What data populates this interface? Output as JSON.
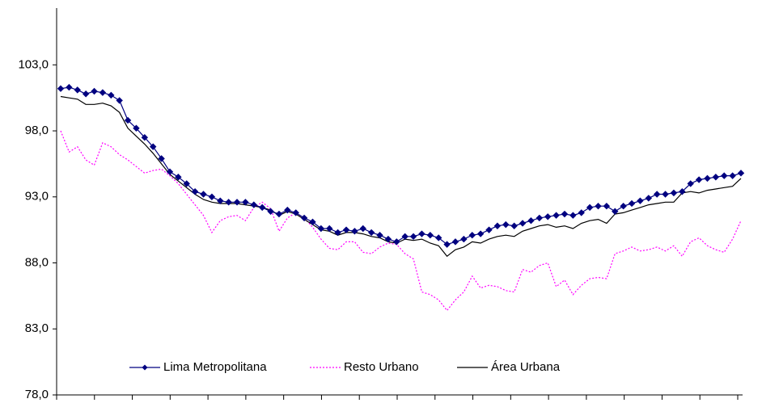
{
  "chart_data": {
    "type": "line",
    "categories": [
      null,
      null,
      null,
      null,
      null,
      null,
      null,
      null,
      null,
      null,
      null,
      null,
      null,
      null,
      null,
      null,
      null,
      null,
      null,
      null,
      null,
      null,
      null,
      null,
      null,
      null,
      null,
      null,
      null,
      null,
      null,
      null,
      null,
      null,
      null,
      null,
      null,
      null,
      null,
      null,
      null,
      null,
      null,
      null,
      null,
      null,
      null,
      null,
      null,
      null,
      null,
      null,
      null,
      null,
      null,
      null,
      null,
      null,
      null,
      null,
      null,
      null,
      null,
      null,
      null,
      null,
      null,
      null,
      null,
      null,
      null,
      null,
      null,
      null,
      null,
      null,
      null,
      null,
      null,
      null,
      null,
      null
    ],
    "series": [
      {
        "name": "Lima Metropolitana",
        "color": "#000080",
        "marker": "diamond",
        "dash": "solid",
        "values": [
          101.2,
          101.3,
          101.1,
          100.8,
          101.0,
          100.9,
          100.7,
          100.3,
          98.8,
          98.2,
          97.5,
          96.8,
          95.9,
          94.9,
          94.5,
          94.0,
          93.4,
          93.2,
          93.0,
          92.7,
          92.6,
          92.6,
          92.6,
          92.4,
          92.2,
          91.9,
          91.7,
          92.0,
          91.8,
          91.4,
          91.1,
          90.6,
          90.6,
          90.3,
          90.5,
          90.4,
          90.6,
          90.3,
          90.1,
          89.8,
          89.6,
          90.0,
          90.0,
          90.2,
          90.1,
          89.9,
          89.4,
          89.6,
          89.8,
          90.1,
          90.2,
          90.5,
          90.8,
          90.9,
          90.8,
          91.0,
          91.2,
          91.4,
          91.5,
          91.6,
          91.7,
          91.6,
          91.8,
          92.2,
          92.3,
          92.3,
          91.9,
          92.3,
          92.5,
          92.7,
          92.9,
          93.2,
          93.2,
          93.3,
          93.4,
          94.0,
          94.3,
          94.4,
          94.5,
          94.6,
          94.6,
          94.8
        ]
      },
      {
        "name": "Resto Urbano",
        "color": "#ff00ff",
        "marker": "none",
        "dash": "dotted",
        "values": [
          98.0,
          96.4,
          96.8,
          95.8,
          95.4,
          97.1,
          96.8,
          96.2,
          95.8,
          95.3,
          94.8,
          95.0,
          95.1,
          94.6,
          94.0,
          93.2,
          92.4,
          91.6,
          90.3,
          91.2,
          91.5,
          91.6,
          91.2,
          92.2,
          92.6,
          92.1,
          90.4,
          91.4,
          91.8,
          91.4,
          90.7,
          89.8,
          89.1,
          89.0,
          89.6,
          89.6,
          88.8,
          88.7,
          89.2,
          89.5,
          89.4,
          88.7,
          88.3,
          85.8,
          85.6,
          85.2,
          84.4,
          85.2,
          85.8,
          87.0,
          86.1,
          86.3,
          86.2,
          85.9,
          85.8,
          87.5,
          87.3,
          87.8,
          88.0,
          86.2,
          86.7,
          85.6,
          86.3,
          86.8,
          86.9,
          86.8,
          88.7,
          88.9,
          89.2,
          88.9,
          89.0,
          89.2,
          88.9,
          89.3,
          88.5,
          89.6,
          89.9,
          89.3,
          89.0,
          88.8,
          89.8,
          91.2
        ]
      },
      {
        "name": "Área Urbana",
        "color": "#000000",
        "marker": "none",
        "dash": "solid",
        "values": [
          100.6,
          100.5,
          100.4,
          100.0,
          100.0,
          100.1,
          99.9,
          99.4,
          98.2,
          97.6,
          97.0,
          96.3,
          95.5,
          94.7,
          94.2,
          93.7,
          93.2,
          92.8,
          92.6,
          92.5,
          92.5,
          92.5,
          92.4,
          92.3,
          92.2,
          92.0,
          91.6,
          91.9,
          91.7,
          91.3,
          90.9,
          90.5,
          90.4,
          90.1,
          90.3,
          90.3,
          90.2,
          90.0,
          89.9,
          89.6,
          89.5,
          89.8,
          89.7,
          89.8,
          89.5,
          89.3,
          88.5,
          89.0,
          89.2,
          89.6,
          89.5,
          89.8,
          90.0,
          90.1,
          90.0,
          90.4,
          90.6,
          90.8,
          90.9,
          90.7,
          90.8,
          90.6,
          91.0,
          91.2,
          91.3,
          91.0,
          91.7,
          91.8,
          92.0,
          92.2,
          92.4,
          92.5,
          92.6,
          92.6,
          93.3,
          93.4,
          93.3,
          93.5,
          93.6,
          93.7,
          93.8,
          94.4
        ]
      }
    ],
    "ylim": [
      78,
      107.3
    ],
    "yticks": [
      {
        "value": 78,
        "label": "78,0"
      },
      {
        "value": 83,
        "label": "83,0"
      },
      {
        "value": 88,
        "label": "88,0"
      },
      {
        "value": 93,
        "label": "93,0"
      },
      {
        "value": 98,
        "label": "98,0"
      },
      {
        "value": 103,
        "label": "103,0"
      }
    ],
    "grid": false,
    "legend": "bottom"
  }
}
